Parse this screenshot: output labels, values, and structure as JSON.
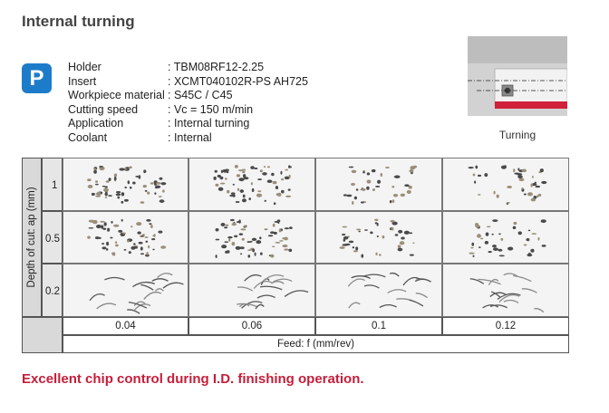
{
  "title": "Internal turning",
  "badge": "P",
  "specs": [
    {
      "label": "Holder",
      "value": ": TBM08RF12-2.25"
    },
    {
      "label": "Insert",
      "value": ": XCMT040102R-PS AH725"
    },
    {
      "label": "Workpiece material",
      "value": ": S45C / C45"
    },
    {
      "label": "Cutting speed",
      "value": ": Vc = 150 m/min"
    },
    {
      "label": "Application",
      "value": ": Internal turning"
    },
    {
      "label": "Coolant",
      "value": ": Internal"
    }
  ],
  "turning_caption": "Turning",
  "grid": {
    "axis_label": "Depth of cut: ap (mm)",
    "depths": [
      "1",
      "0.5",
      "0.2"
    ],
    "feeds": [
      "0.04",
      "0.06",
      "0.1",
      "0.12"
    ],
    "feed_label": "Feed: f (mm/rev)"
  },
  "footer": "Excellent chip control during I.D. finishing operation.",
  "colors": {
    "badge": "#1d7cc9",
    "footer": "#c41e3a",
    "stripe": "#d0203a"
  }
}
